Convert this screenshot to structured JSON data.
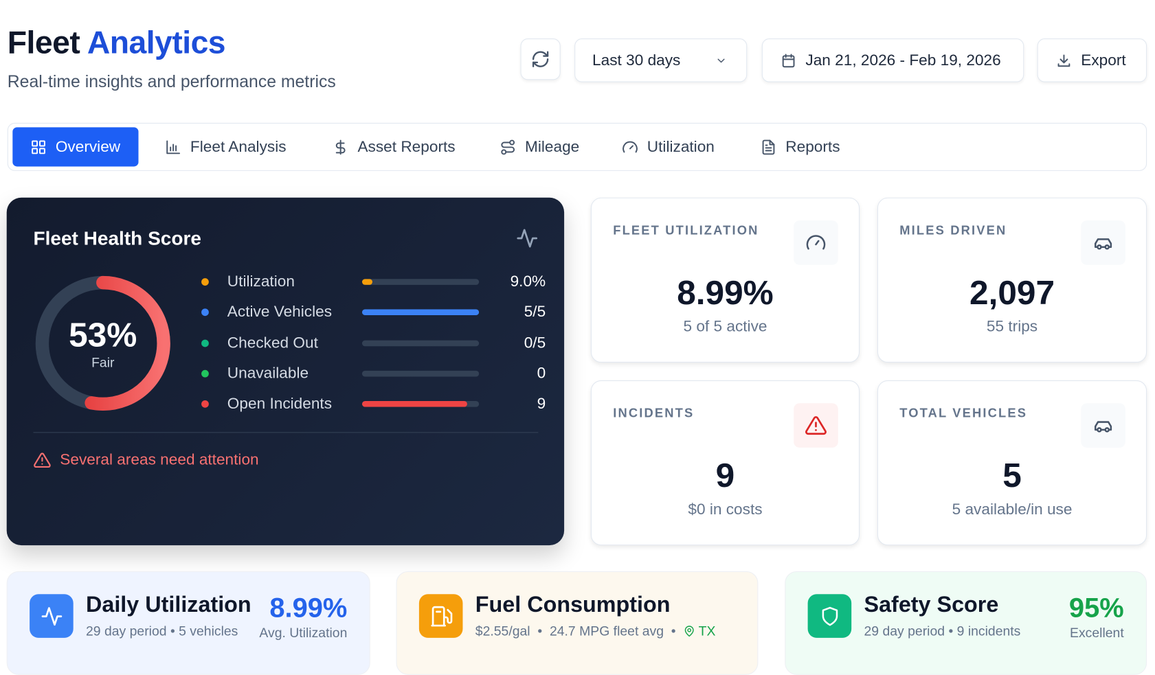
{
  "header": {
    "title_part1": "Fleet",
    "title_part2": "Analytics",
    "subtitle": "Real-time insights and performance metrics",
    "range_select": "Last 30 days",
    "date_range": "Jan 21, 2026 - Feb 19, 2026",
    "export_label": "Export"
  },
  "tabs": [
    {
      "label": "Overview",
      "icon": "grid-icon",
      "active": true
    },
    {
      "label": "Fleet Analysis",
      "icon": "bar-chart-icon"
    },
    {
      "label": "Asset Reports",
      "icon": "dollar-icon"
    },
    {
      "label": "Mileage",
      "icon": "route-icon"
    },
    {
      "label": "Utilization",
      "icon": "gauge-icon"
    },
    {
      "label": "Reports",
      "icon": "file-text-icon"
    }
  ],
  "health": {
    "title": "Fleet Health Score",
    "score": "53%",
    "score_value": 53,
    "rating": "Fair",
    "metrics": [
      {
        "label": "Utilization",
        "value": "9.0%",
        "fill": 0.09,
        "color": "#f59e0b"
      },
      {
        "label": "Active Vehicles",
        "value": "5/5",
        "fill": 1.0,
        "color": "#3b82f6"
      },
      {
        "label": "Checked Out",
        "value": "0/5",
        "fill": 0,
        "color": "#10b981"
      },
      {
        "label": "Unavailable",
        "value": "0",
        "fill": 0,
        "color": "#22c55e"
      },
      {
        "label": "Open Incidents",
        "value": "9",
        "fill": 0.9,
        "color": "#ef4444"
      }
    ],
    "alert": "Several areas need attention"
  },
  "stats": [
    {
      "label": "FLEET UTILIZATION",
      "value": "8.99%",
      "sub": "5 of 5 active",
      "icon": "gauge-icon"
    },
    {
      "label": "MILES DRIVEN",
      "value": "2,097",
      "sub": "55 trips",
      "icon": "car-icon"
    },
    {
      "label": "INCIDENTS",
      "value": "9",
      "sub": "$0 in costs",
      "icon": "alert-triangle-icon"
    },
    {
      "label": "TOTAL VEHICLES",
      "value": "5",
      "sub": "5 available/in use",
      "icon": "car-icon"
    }
  ],
  "bottom": {
    "daily": {
      "title": "Daily Utilization",
      "period": "29 day period",
      "vehicles": "5 vehicles",
      "value": "8.99%",
      "caption": "Avg. Utilization"
    },
    "fuel": {
      "title": "Fuel Consumption",
      "price": "$2.55/gal",
      "mpg": "24.7 MPG fleet avg",
      "location": "TX"
    },
    "safety": {
      "title": "Safety Score",
      "period": "29 day period",
      "incidents": "9 incidents",
      "value": "95%",
      "caption": "Excellent"
    }
  },
  "colors": {
    "accent": "#1d5ff5",
    "danger": "#ef4444",
    "success": "#16a34a",
    "warning": "#f59e0b"
  }
}
